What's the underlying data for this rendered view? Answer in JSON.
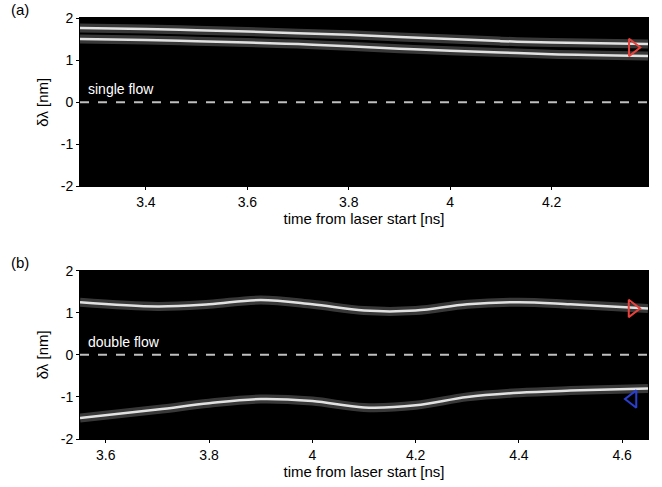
{
  "chart_data": [
    {
      "type": "line",
      "panel": "(a)",
      "xlabel": "time from laser start [ns]",
      "ylabel": "δλ [nm]",
      "xlim": [
        3.27,
        4.39
      ],
      "xticks": [
        3.4,
        3.6,
        3.8,
        4,
        4.2
      ],
      "ylim": [
        -2,
        2
      ],
      "yticks": [
        -2,
        -1,
        0,
        1,
        2
      ],
      "grid": false,
      "series": [
        {
          "color": "#ffffff",
          "x": [
            3.27,
            3.4,
            3.5,
            3.6,
            3.7,
            3.8,
            3.9,
            4.0,
            4.1,
            4.2,
            4.39
          ],
          "values": [
            1.76,
            1.74,
            1.71,
            1.68,
            1.64,
            1.6,
            1.55,
            1.5,
            1.45,
            1.42,
            1.38
          ]
        },
        {
          "color": "#ffffff",
          "x": [
            3.27,
            3.4,
            3.5,
            3.6,
            3.7,
            3.8,
            3.9,
            4.0,
            4.1,
            4.2,
            4.39
          ],
          "values": [
            1.5,
            1.48,
            1.45,
            1.42,
            1.38,
            1.33,
            1.27,
            1.22,
            1.18,
            1.14,
            1.1
          ]
        }
      ],
      "reference_lines": [
        {
          "y": 0,
          "line_style": "dash",
          "color": "#bfbfbf"
        }
      ],
      "annotations": [
        {
          "text": "single flow"
        }
      ],
      "markers": [
        {
          "x": 4.36,
          "y": 1.3,
          "marker": "triangle-right",
          "color": "#e8413c"
        }
      ]
    },
    {
      "type": "line",
      "panel": "(b)",
      "xlabel": "time from laser start [ns]",
      "ylabel": "δλ [nm]",
      "xlim": [
        3.55,
        4.65
      ],
      "xticks": [
        3.6,
        3.8,
        4,
        4.2,
        4.4,
        4.6
      ],
      "ylim": [
        -2,
        2
      ],
      "yticks": [
        -2,
        -1,
        0,
        1,
        2
      ],
      "grid": false,
      "series": [
        {
          "color": "#ffffff",
          "x": [
            3.55,
            3.7,
            3.8,
            3.9,
            4.0,
            4.1,
            4.2,
            4.3,
            4.4,
            4.5,
            4.65
          ],
          "values": [
            1.25,
            1.15,
            1.2,
            1.3,
            1.2,
            1.05,
            1.05,
            1.2,
            1.25,
            1.2,
            1.1
          ]
        },
        {
          "color": "#ffffff",
          "x": [
            3.55,
            3.7,
            3.8,
            3.9,
            4.0,
            4.1,
            4.2,
            4.3,
            4.4,
            4.5,
            4.65
          ],
          "values": [
            -1.5,
            -1.3,
            -1.15,
            -1.05,
            -1.1,
            -1.25,
            -1.2,
            -1.0,
            -0.9,
            -0.85,
            -0.8
          ]
        }
      ],
      "reference_lines": [
        {
          "y": 0,
          "line_style": "dash",
          "color": "#bfbfbf"
        }
      ],
      "annotations": [
        {
          "text": "double flow"
        }
      ],
      "markers": [
        {
          "x": 4.62,
          "y": 1.1,
          "marker": "triangle-right",
          "color": "#e8413c"
        },
        {
          "x": 4.62,
          "y": -1.05,
          "marker": "triangle-left",
          "color": "#2a3fd0"
        }
      ]
    }
  ]
}
